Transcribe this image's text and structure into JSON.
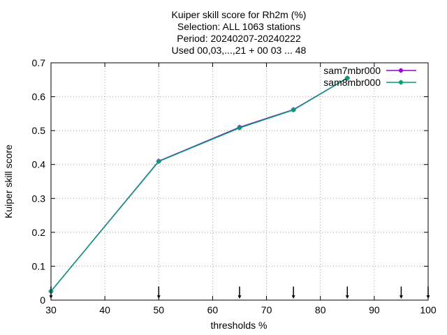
{
  "chart_data": {
    "type": "line",
    "title_lines": [
      "Kuiper skill score  for Rh2m (%)",
      "Selection: ALL   1063 stations",
      "Period: 20240207-20240222",
      "Used 00,03,...,21 + 00 03 ... 48"
    ],
    "xlabel": "thresholds %",
    "ylabel": "Kuiper skill score",
    "xlim": [
      30,
      100
    ],
    "ylim": [
      0,
      0.7
    ],
    "xticks": [
      30,
      40,
      50,
      60,
      70,
      80,
      90,
      100
    ],
    "yticks": [
      0,
      0.1,
      0.2,
      0.3,
      0.4,
      0.5,
      0.6,
      0.7
    ],
    "ytick_labels": [
      "0",
      "0.1",
      "0.2",
      "0.3",
      "0.4",
      "0.5",
      "0.6",
      "0.7"
    ],
    "grid": true,
    "legend_position": "top-right",
    "series": [
      {
        "name": "sam7mbr000",
        "color": "#9400d3",
        "x": [
          30,
          50,
          65,
          75,
          85
        ],
        "y": [
          0.026,
          0.41,
          0.51,
          0.562,
          0.655
        ]
      },
      {
        "name": "sam8mbr000",
        "color": "#009e73",
        "x": [
          30,
          50,
          65,
          75,
          85
        ],
        "y": [
          0.026,
          0.409,
          0.508,
          0.561,
          0.655
        ]
      }
    ],
    "threshold_markers": [
      30,
      50,
      65,
      75,
      85,
      95,
      100
    ]
  }
}
